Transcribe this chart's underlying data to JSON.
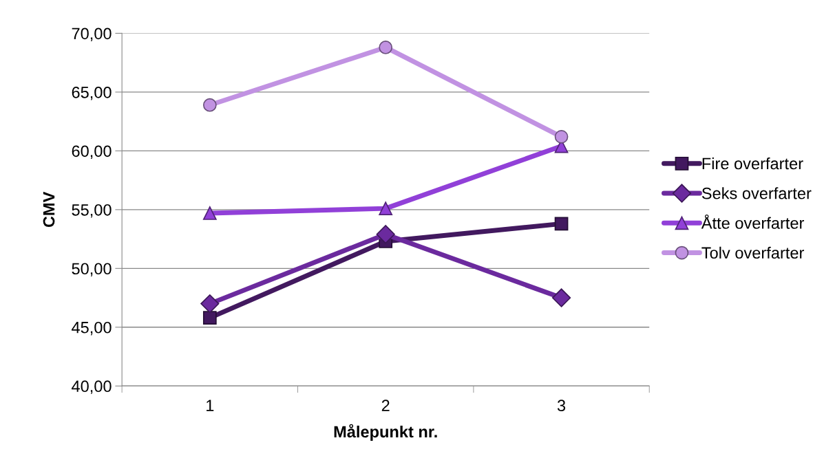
{
  "chart_data": {
    "type": "line",
    "xlabel": "Målepunkt nr.",
    "ylabel": "CMV",
    "categories": [
      "1",
      "2",
      "3"
    ],
    "series": [
      {
        "name": "Fire overfarter",
        "color": "#42195f",
        "marker": "square",
        "values": [
          45.8,
          52.3,
          53.8
        ]
      },
      {
        "name": "Seks overfarter",
        "color": "#6b2a9e",
        "marker": "diamond",
        "values": [
          47.0,
          52.9,
          47.5
        ]
      },
      {
        "name": "Åtte overfarter",
        "color": "#9140d8",
        "marker": "triangle",
        "values": [
          54.7,
          55.1,
          60.4
        ]
      },
      {
        "name": "Tolv overfarter",
        "color": "#c192e2",
        "marker": "circle",
        "values": [
          63.9,
          68.8,
          61.2
        ]
      }
    ],
    "ylim": [
      40,
      70
    ],
    "yticks": [
      {
        "value": 40,
        "label": "40,00"
      },
      {
        "value": 45,
        "label": "45,00"
      },
      {
        "value": 50,
        "label": "50,00"
      },
      {
        "value": 55,
        "label": "55,00"
      },
      {
        "value": 60,
        "label": "60,00"
      },
      {
        "value": 65,
        "label": "65,00"
      },
      {
        "value": 70,
        "label": "70,00"
      }
    ],
    "grid": "y",
    "legend": "right"
  }
}
